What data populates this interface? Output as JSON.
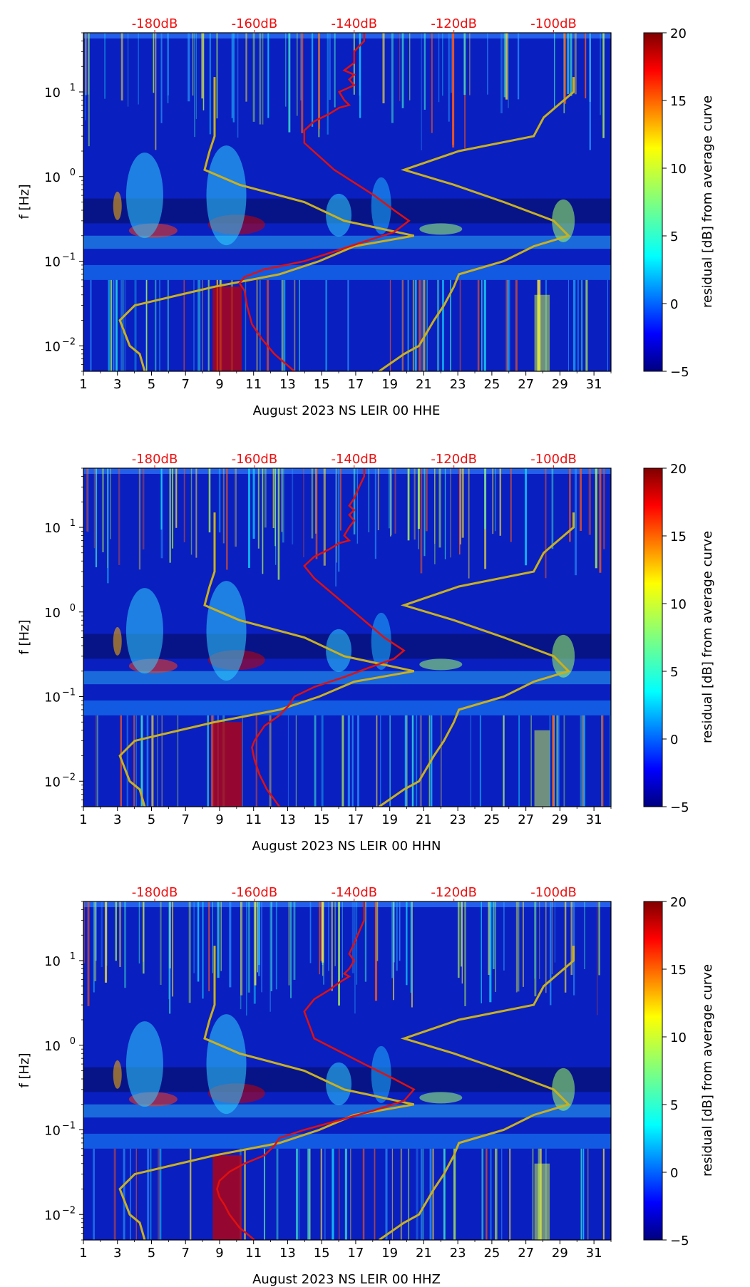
{
  "colors": {
    "psd_curve": "#e01010",
    "noise_model": "#c8b020",
    "top_labels": "#ee1111",
    "colormap": [
      "#00007f",
      "#0000ff",
      "#007fff",
      "#00ffff",
      "#7fff7f",
      "#ffff00",
      "#ff7f00",
      "#ff0000",
      "#7f0000"
    ]
  },
  "chart_data": [
    {
      "type": "heatmap",
      "title": "",
      "xlabel": "August 2023 NS LEIR 00 HHE",
      "ylabel": "f [Hz]",
      "x_ticks": [
        "1",
        "3",
        "5",
        "7",
        "9",
        "11",
        "13",
        "15",
        "17",
        "19",
        "21",
        "23",
        "25",
        "27",
        "29",
        "31"
      ],
      "xlim": [
        1,
        32
      ],
      "y_ticks": [
        {
          "base": "10",
          "exp": "−2",
          "value": 0.01
        },
        {
          "base": "10",
          "exp": "−1",
          "value": 0.1
        },
        {
          "base": "10",
          "exp": "0",
          "value": 1
        },
        {
          "base": "10",
          "exp": "1",
          "value": 10
        }
      ],
      "ylim": [
        0.005,
        50
      ],
      "y_scale": "log",
      "top_axis_labels": [
        "-180dB",
        "-160dB",
        "-140dB",
        "-120dB",
        "-100dB"
      ],
      "colorbar": {
        "label": "residual [dB] from average curve",
        "ticks": [
          "−5",
          "0",
          "5",
          "10",
          "15",
          "20"
        ],
        "range": [
          -5,
          20
        ]
      },
      "psd_curve": {
        "dB": [
          -152,
          -156,
          -158.5,
          -160.5,
          -161.5,
          -162,
          -163,
          -162,
          -158,
          -150,
          -144,
          -138,
          -132,
          -129,
          -132,
          -136,
          -144,
          -150,
          -150,
          -148,
          -145,
          -143,
          -141,
          -142,
          -143,
          -140,
          -141,
          -140,
          -142,
          -140,
          -140,
          -138,
          -138
        ],
        "f": [
          0.005,
          0.008,
          0.012,
          0.018,
          0.03,
          0.045,
          0.055,
          0.065,
          0.08,
          0.1,
          0.13,
          0.17,
          0.22,
          0.3,
          0.4,
          0.6,
          1.2,
          2.5,
          3.5,
          4.5,
          5.5,
          6.5,
          7,
          8,
          10,
          12,
          14,
          16,
          18,
          22,
          30,
          40,
          50
        ]
      }
    },
    {
      "type": "heatmap",
      "title": "",
      "xlabel": "August 2023 NS LEIR 00 HHN",
      "ylabel": "f [Hz]",
      "x_ticks": [
        "1",
        "3",
        "5",
        "7",
        "9",
        "11",
        "13",
        "15",
        "17",
        "19",
        "21",
        "23",
        "25",
        "27",
        "29",
        "31"
      ],
      "xlim": [
        1,
        32
      ],
      "y_ticks": [
        {
          "base": "10",
          "exp": "−2",
          "value": 0.01
        },
        {
          "base": "10",
          "exp": "−1",
          "value": 0.1
        },
        {
          "base": "10",
          "exp": "0",
          "value": 1
        },
        {
          "base": "10",
          "exp": "1",
          "value": 10
        }
      ],
      "ylim": [
        0.005,
        50
      ],
      "y_scale": "log",
      "top_axis_labels": [
        "-180dB",
        "-160dB",
        "-140dB",
        "-120dB",
        "-100dB"
      ],
      "colorbar": {
        "label": "residual [dB] from average curve",
        "ticks": [
          "−5",
          "0",
          "5",
          "10",
          "15",
          "20"
        ],
        "range": [
          -5,
          20
        ]
      },
      "psd_curve": {
        "dB": [
          -155,
          -157.5,
          -159,
          -160,
          -160.5,
          -160,
          -158,
          -155,
          -153,
          -152,
          -148,
          -142,
          -137,
          -132,
          -130,
          -134,
          -140,
          -148,
          -150,
          -148,
          -145,
          -143,
          -141,
          -142,
          -141,
          -140,
          -141,
          -140,
          -141,
          -140,
          -139,
          -138,
          -138
        ],
        "f": [
          0.005,
          0.008,
          0.012,
          0.018,
          0.025,
          0.03,
          0.045,
          0.06,
          0.08,
          0.1,
          0.13,
          0.17,
          0.22,
          0.28,
          0.35,
          0.5,
          1.0,
          2.5,
          3.5,
          4.5,
          5.5,
          6.5,
          7,
          8,
          10,
          12,
          14,
          16,
          18,
          22,
          30,
          40,
          50
        ]
      }
    },
    {
      "type": "heatmap",
      "title": "",
      "xlabel": "August 2023 NS LEIR 00 HHZ",
      "ylabel": "f [Hz]",
      "x_ticks": [
        "1",
        "3",
        "5",
        "7",
        "9",
        "11",
        "13",
        "15",
        "17",
        "19",
        "21",
        "23",
        "25",
        "27",
        "29",
        "31"
      ],
      "xlim": [
        1,
        32
      ],
      "y_ticks": [
        {
          "base": "10",
          "exp": "−2",
          "value": 0.01
        },
        {
          "base": "10",
          "exp": "−1",
          "value": 0.1
        },
        {
          "base": "10",
          "exp": "0",
          "value": 1
        },
        {
          "base": "10",
          "exp": "1",
          "value": 10
        }
      ],
      "ylim": [
        0.005,
        50
      ],
      "y_scale": "log",
      "top_axis_labels": [
        "-180dB",
        "-160dB",
        "-140dB",
        "-120dB",
        "-100dB"
      ],
      "colorbar": {
        "label": "residual [dB] from average curve",
        "ticks": [
          "−5",
          "0",
          "5",
          "10",
          "15",
          "20"
        ],
        "range": [
          -5,
          20
        ]
      },
      "psd_curve": {
        "dB": [
          -160,
          -163,
          -165,
          -166,
          -167,
          -167.5,
          -167,
          -165,
          -162,
          -158,
          -156,
          -155,
          -150,
          -143,
          -136,
          -130,
          -128,
          -132,
          -138,
          -148,
          -150,
          -148,
          -145,
          -143,
          -141,
          -142,
          -141,
          -140,
          -141,
          -140,
          -139,
          -138,
          -138
        ],
        "f": [
          0.005,
          0.007,
          0.01,
          0.013,
          0.016,
          0.02,
          0.025,
          0.032,
          0.04,
          0.05,
          0.065,
          0.08,
          0.1,
          0.13,
          0.17,
          0.22,
          0.3,
          0.4,
          0.6,
          1.2,
          2.5,
          3.5,
          4.5,
          5.5,
          6.5,
          7,
          8,
          10,
          12,
          16,
          22,
          30,
          50
        ]
      }
    }
  ],
  "noise_model": {
    "f": [
      0.005,
      0.008,
      0.01,
      0.02,
      0.03,
      0.05,
      0.07,
      0.1,
      0.15,
      0.2,
      0.3,
      0.5,
      0.8,
      1.2,
      2,
      3,
      5,
      10,
      15
    ],
    "nlnm_dB": [
      -182,
      -183,
      -185,
      -187,
      -184,
      -168,
      -155,
      -147,
      -140,
      -128,
      -142,
      -150,
      -163,
      -170,
      -169,
      -168,
      -168,
      -168,
      -168
    ],
    "nhnm_dB": [
      -135,
      -130,
      -127,
      -124,
      -122,
      -120,
      -119,
      -110,
      -104,
      -97,
      -100,
      -110,
      -120,
      -130,
      -119,
      -104,
      -102,
      -96,
      -96
    ]
  }
}
